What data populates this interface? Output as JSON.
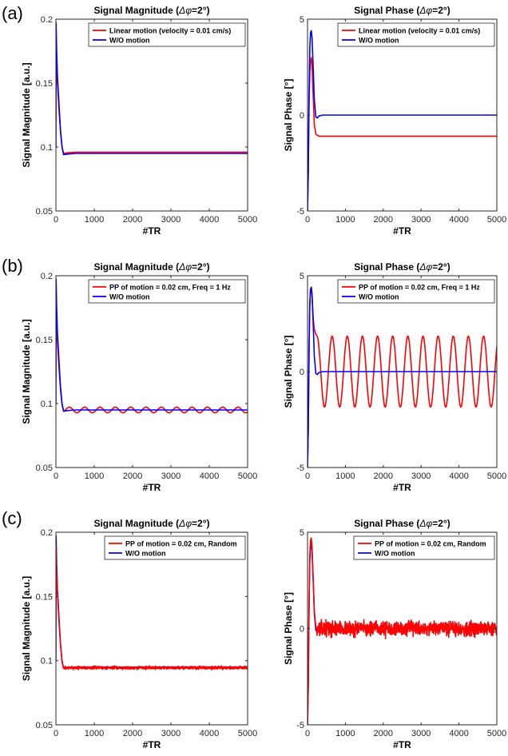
{
  "panel_labels": [
    "(a)",
    "(b)",
    "(c)"
  ],
  "chart_data": [
    {
      "type": "line",
      "panel": "(a)",
      "title_main": "Signal Magnitude (",
      "title_sym": "Δφ",
      "title_end": "=2°)",
      "xlabel": "#TR",
      "ylabel": "Signal Magnitude [a.u.]",
      "xlim": [
        0,
        5000
      ],
      "ylim": [
        0.05,
        0.2
      ],
      "xticks": [
        0,
        1000,
        2000,
        3000,
        4000,
        5000
      ],
      "yticks": [
        0.05,
        0.1,
        0.15,
        0.2
      ],
      "ytick_labels": [
        "0.05",
        "0.1",
        "0.15",
        "0.2"
      ],
      "legend_placement": "top-right",
      "series": [
        {
          "name": "Linear motion (velocity = 0.01 cm/s)",
          "color": "#ff0000",
          "x": [
            0,
            5,
            20,
            40,
            60,
            90,
            120,
            160,
            200,
            300,
            500,
            1000,
            2000,
            3000,
            4000,
            5000
          ],
          "y": [
            0.12,
            0.188,
            0.165,
            0.15,
            0.14,
            0.125,
            0.112,
            0.1,
            0.095,
            0.0955,
            0.096,
            0.096,
            0.096,
            0.096,
            0.096,
            0.096
          ]
        },
        {
          "name": "W/O motion",
          "color": "#0000ff",
          "x": [
            0,
            5,
            20,
            40,
            60,
            90,
            120,
            160,
            200,
            300,
            500,
            1000,
            2000,
            3000,
            4000,
            5000
          ],
          "y": [
            0.1,
            0.197,
            0.175,
            0.155,
            0.145,
            0.128,
            0.113,
            0.1,
            0.094,
            0.0945,
            0.095,
            0.095,
            0.095,
            0.095,
            0.095,
            0.095
          ]
        }
      ]
    },
    {
      "type": "line",
      "panel": "(a)",
      "title_main": "Signal Phase (",
      "title_sym": "Δφ",
      "title_end": "=2°)",
      "xlabel": "#TR",
      "ylabel": "Signal Phase [°]",
      "xlim": [
        0,
        5000
      ],
      "ylim": [
        -5,
        5
      ],
      "xticks": [
        0,
        1000,
        2000,
        3000,
        4000,
        5000
      ],
      "yticks": [
        -5,
        0,
        5
      ],
      "ytick_labels": [
        "-5",
        "0",
        "5"
      ],
      "legend_placement": "top-right",
      "series": [
        {
          "name": "Linear motion (velocity = 0.01 cm/s)",
          "color": "#ff0000",
          "x": [
            0,
            20,
            40,
            60,
            80,
            100,
            120,
            150,
            180,
            220,
            300,
            400,
            1000,
            2000,
            3000,
            4000,
            5000
          ],
          "y": [
            -5,
            -3,
            0.5,
            2.2,
            2.8,
            3.0,
            2.6,
            1.0,
            -0.5,
            -1.0,
            -1.1,
            -1.1,
            -1.1,
            -1.1,
            -1.1,
            -1.1,
            -1.1
          ]
        },
        {
          "name": "W/O motion",
          "color": "#0000ff",
          "x": [
            0,
            20,
            40,
            60,
            80,
            100,
            120,
            150,
            180,
            220,
            260,
            300,
            400,
            1000,
            2000,
            3000,
            4000,
            5000
          ],
          "y": [
            -5,
            -3,
            1,
            3.5,
            4.3,
            4.4,
            4.0,
            2.5,
            0.8,
            -0.1,
            -0.15,
            -0.05,
            0,
            0,
            0,
            0,
            0,
            0
          ]
        }
      ]
    },
    {
      "type": "line",
      "panel": "(b)",
      "title_main": "Signal Magnitude (",
      "title_sym": "Δφ",
      "title_end": "=2°)",
      "xlabel": "#TR",
      "ylabel": "Signal Magnitude [a.u.]",
      "xlim": [
        0,
        5000
      ],
      "ylim": [
        0.05,
        0.2
      ],
      "xticks": [
        0,
        1000,
        2000,
        3000,
        4000,
        5000
      ],
      "yticks": [
        0.05,
        0.1,
        0.15,
        0.2
      ],
      "ytick_labels": [
        "0.05",
        "0.1",
        "0.15",
        "0.2"
      ],
      "legend_placement": "top-right",
      "oscillation": {
        "series_index": 0,
        "start": 250,
        "center": 0.095,
        "amplitude": 0.0022,
        "period": 400,
        "phase_deg": 0
      },
      "series": [
        {
          "name": "PP of motion = 0.02 cm, Freq = 1 Hz",
          "color": "#ff0000",
          "x": [
            0,
            5,
            20,
            40,
            60,
            90,
            120,
            160,
            200,
            250
          ],
          "y": [
            0.12,
            0.185,
            0.163,
            0.148,
            0.138,
            0.124,
            0.111,
            0.099,
            0.094,
            0.095
          ]
        },
        {
          "name": "W/O motion",
          "color": "#0000ff",
          "x": [
            0,
            5,
            20,
            40,
            60,
            90,
            120,
            160,
            200,
            300,
            500,
            1000,
            2000,
            3000,
            4000,
            5000
          ],
          "y": [
            0.1,
            0.197,
            0.175,
            0.155,
            0.145,
            0.128,
            0.113,
            0.1,
            0.094,
            0.0945,
            0.095,
            0.095,
            0.095,
            0.095,
            0.095,
            0.095
          ]
        }
      ]
    },
    {
      "type": "line",
      "panel": "(b)",
      "title_main": "Signal Phase (",
      "title_sym": "Δφ",
      "title_end": "=2°)",
      "xlabel": "#TR",
      "ylabel": "Signal Phase [°]",
      "xlim": [
        0,
        5000
      ],
      "ylim": [
        -5,
        5
      ],
      "xticks": [
        0,
        1000,
        2000,
        3000,
        4000,
        5000
      ],
      "yticks": [
        -5,
        0,
        5
      ],
      "ytick_labels": [
        "-5",
        "0",
        "5"
      ],
      "legend_placement": "top-right",
      "oscillation": {
        "series_index": 0,
        "start": 250,
        "center": 0,
        "amplitude": 1.85,
        "period": 400,
        "phase_deg": 90
      },
      "series": [
        {
          "name": "PP of motion = 0.02 cm, Freq = 1 Hz",
          "color": "#ff0000",
          "x": [
            0,
            20,
            40,
            60,
            80,
            100,
            120,
            150,
            180,
            220,
            250
          ],
          "y": [
            -5,
            -3,
            1,
            3.5,
            4.3,
            4.4,
            4.0,
            2.8,
            2.2,
            1.95,
            1.85
          ]
        },
        {
          "name": "W/O motion",
          "color": "#0000ff",
          "x": [
            0,
            20,
            40,
            60,
            80,
            100,
            120,
            150,
            180,
            220,
            260,
            300,
            400,
            1000,
            2000,
            3000,
            4000,
            5000
          ],
          "y": [
            -5,
            -3,
            1,
            3.5,
            4.3,
            4.4,
            4.0,
            2.5,
            0.8,
            -0.1,
            -0.15,
            -0.05,
            0,
            0,
            0,
            0,
            0,
            0
          ]
        }
      ]
    },
    {
      "type": "line",
      "panel": "(c)",
      "title_main": "Signal Magnitude (",
      "title_sym": "Δφ",
      "title_end": "=2°)",
      "xlabel": "#TR",
      "ylabel": "Signal Magnitude [a.u.]",
      "xlim": [
        0,
        5000
      ],
      "ylim": [
        0.05,
        0.2
      ],
      "xticks": [
        0,
        1000,
        2000,
        3000,
        4000,
        5000
      ],
      "yticks": [
        0.05,
        0.1,
        0.15,
        0.2
      ],
      "ytick_labels": [
        "0.05",
        "0.1",
        "0.15",
        "0.2"
      ],
      "legend_placement": "top-right",
      "noise": {
        "series_index": 0,
        "start": 220,
        "center": 0.0945,
        "amplitude": 0.0018,
        "seed": 7
      },
      "series": [
        {
          "name": "PP of motion = 0.02 cm, Random",
          "color": "#ff0000",
          "x": [
            0,
            5,
            20,
            40,
            60,
            90,
            120,
            160,
            200,
            220
          ],
          "y": [
            0.13,
            0.19,
            0.168,
            0.152,
            0.141,
            0.126,
            0.112,
            0.099,
            0.094,
            0.0945
          ]
        },
        {
          "name": "W/O motion",
          "color": "#0000ff",
          "x": [
            0,
            5,
            20,
            40,
            60,
            90,
            120,
            160,
            200,
            300,
            500,
            1000,
            2000,
            3000,
            4000,
            5000
          ],
          "y": [
            0.1,
            0.197,
            0.175,
            0.155,
            0.145,
            0.128,
            0.113,
            0.1,
            0.094,
            0.0945,
            0.095,
            0.095,
            0.095,
            0.095,
            0.095,
            0.095
          ]
        }
      ]
    },
    {
      "type": "line",
      "panel": "(c)",
      "title_main": "Signal Phase (",
      "title_sym": "Δφ",
      "title_end": "=2°)",
      "xlabel": "#TR",
      "ylabel": "Signal Phase [°]",
      "xlim": [
        0,
        5000
      ],
      "ylim": [
        -5,
        5
      ],
      "xticks": [
        0,
        1000,
        2000,
        3000,
        4000,
        5000
      ],
      "yticks": [
        -5,
        0,
        5
      ],
      "ytick_labels": [
        "-5",
        "0",
        "5"
      ],
      "legend_placement": "top-right",
      "noise": {
        "series_index": 0,
        "start": 240,
        "center": 0,
        "amplitude": 0.55,
        "seed": 13
      },
      "series": [
        {
          "name": "PP of motion = 0.02 cm, Random",
          "color": "#ff0000",
          "x": [
            0,
            20,
            40,
            60,
            80,
            100,
            120,
            150,
            180,
            220,
            240
          ],
          "y": [
            -5,
            -3,
            1.2,
            3.8,
            4.6,
            4.7,
            4.2,
            2.6,
            0.9,
            0.1,
            0
          ]
        },
        {
          "name": "W/O motion",
          "color": "#0000ff",
          "x": [
            0,
            20,
            40,
            60,
            80,
            100,
            120,
            150,
            180,
            220,
            260,
            300,
            400,
            1000,
            2000,
            3000,
            4000,
            5000
          ],
          "y": [
            -5,
            -3,
            1,
            3.5,
            4.3,
            4.4,
            4.0,
            2.5,
            0.8,
            -0.1,
            -0.15,
            -0.05,
            0,
            0,
            0,
            0,
            0,
            0
          ]
        }
      ]
    }
  ]
}
